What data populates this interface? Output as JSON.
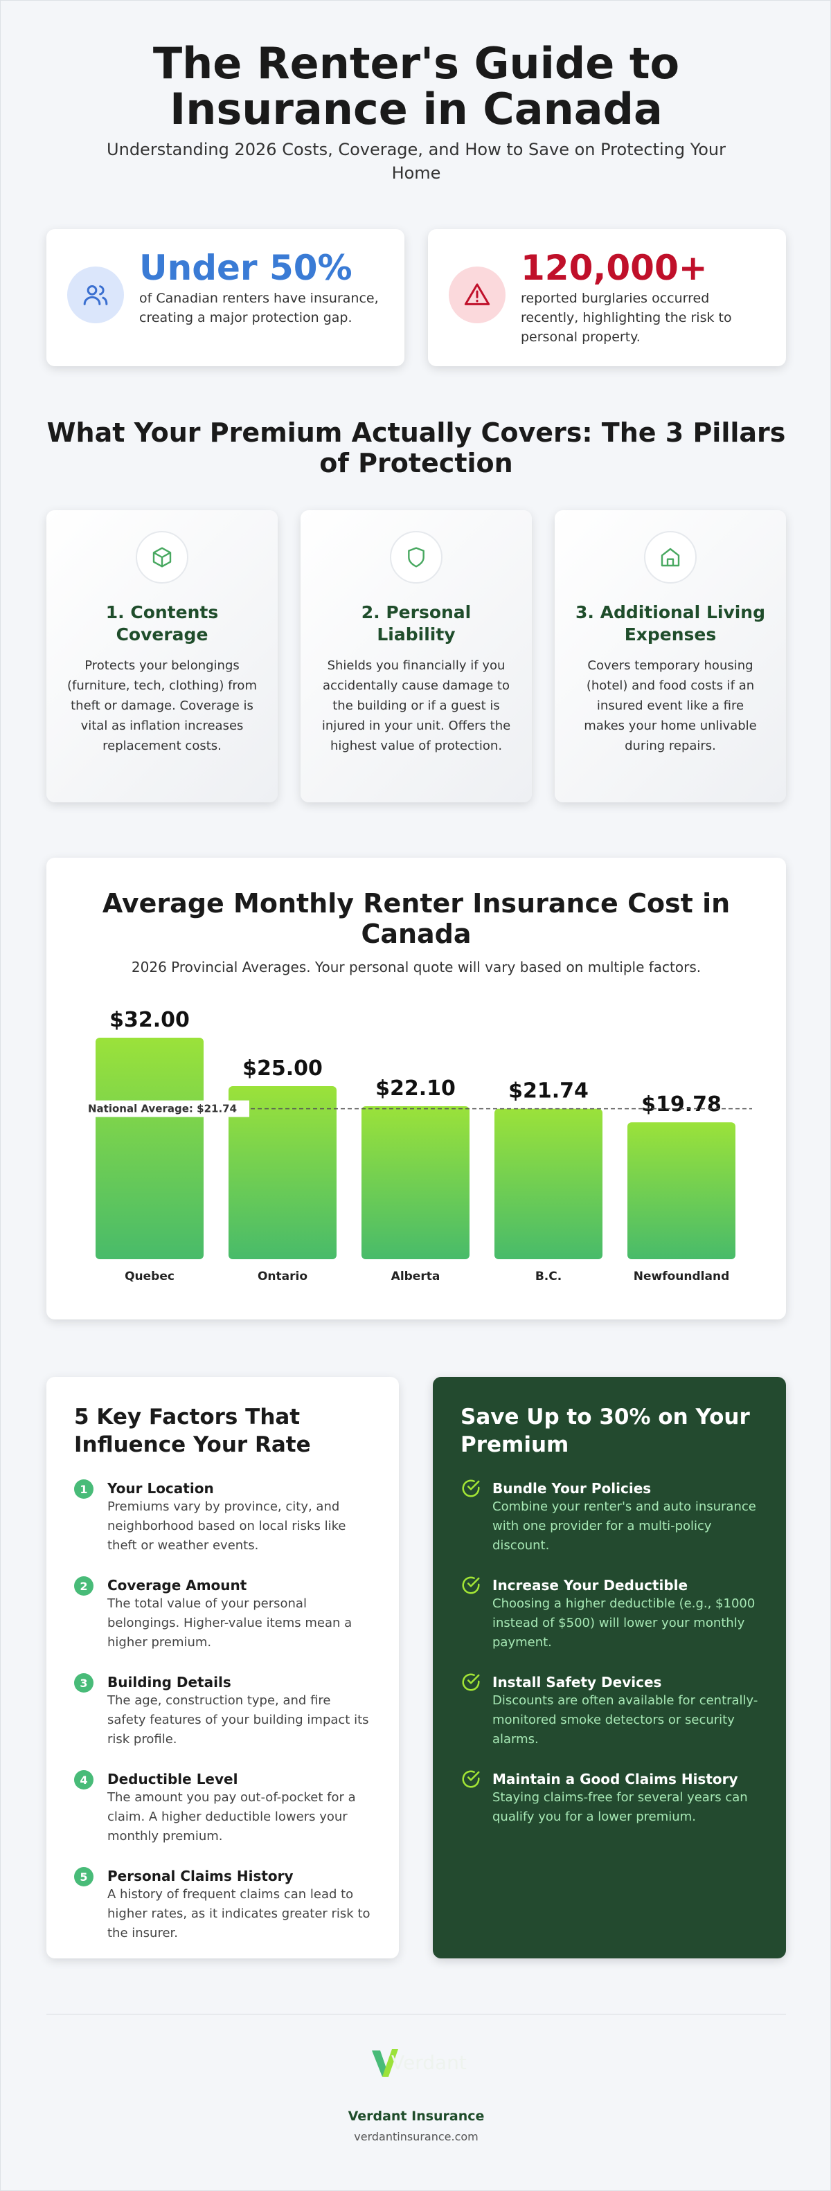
{
  "header": {
    "title": "The Renter's Guide to Insurance in Canada",
    "subtitle": "Understanding 2026 Costs, Coverage, and How to Save on Protecting Your Home"
  },
  "stats": [
    {
      "value": "Under 50%",
      "text": "of Canadian renters have insurance, creating a major protection gap."
    },
    {
      "value": "120,000+",
      "text": "reported burglaries occurred recently, highlighting the risk to personal property."
    }
  ],
  "pillars": {
    "title": "What Your Premium Actually Covers: The 3 Pillars of Protection",
    "items": [
      {
        "title": "1. Contents Coverage",
        "text": "Protects your belongings (furniture, tech, clothing) from theft or damage. Coverage is vital as inflation increases replacement costs."
      },
      {
        "title": "2. Personal Liability",
        "text": "Shields you financially if you accidentally cause damage to the building or if a guest is injured in your unit. Offers the highest value of protection."
      },
      {
        "title": "3. Additional Living Expenses",
        "text": "Covers temporary housing (hotel) and food costs if an insured event like a fire makes your home unlivable during repairs."
      }
    ]
  },
  "chart_data": {
    "type": "bar",
    "title": "Average Monthly Renter Insurance Cost in Canada",
    "subtitle": "2026 Provincial Averages. Your personal quote will vary based on multiple factors.",
    "categories": [
      "Quebec",
      "Ontario",
      "Alberta",
      "B.C.",
      "Newfoundland"
    ],
    "values": [
      32,
      25,
      22.1,
      21.74,
      19.78
    ],
    "value_labels": [
      "$32.00",
      "$25.00",
      "$22.10",
      "$21.74",
      "$19.78"
    ],
    "gradient": [
      "#9be23a",
      "#48bb6a"
    ],
    "reference_line": {
      "value": 21.74,
      "label": "National Average: $21.74"
    }
  },
  "factors": {
    "title": "5 Key Factors That Influence Your Rate",
    "items": [
      {
        "number": 1,
        "title": "Your Location",
        "text": "Premiums vary by province, city, and neighborhood based on local risks like theft or weather events."
      },
      {
        "number": 2,
        "title": "Coverage Amount",
        "text": "The total value of your personal belongings. Higher-value items mean a higher premium."
      },
      {
        "number": 3,
        "title": "Building Details",
        "text": "The age, construction type, and fire safety features of your building impact its risk profile."
      },
      {
        "number": 4,
        "title": "Deductible Level",
        "text": "The amount you pay out-of-pocket for a claim. A higher deductible lowers your monthly premium."
      },
      {
        "number": 5,
        "title": "Personal Claims History",
        "text": "A history of frequent claims can lead to higher rates, as it indicates greater risk to the insurer."
      }
    ]
  },
  "savings": {
    "title": "Save Up to 30% on Your Premium",
    "items": [
      {
        "title": "Bundle Your Policies",
        "text": "Combine your renter's and auto insurance with one provider for a multi-policy discount."
      },
      {
        "title": "Increase Your Deductible",
        "text": "Choosing a higher deductible (e.g., $1000 instead of $500) will lower your monthly payment."
      },
      {
        "title": "Install Safety Devices",
        "text": "Discounts are often available for centrally-monitored smoke detectors or security alarms."
      },
      {
        "title": "Maintain a Good Claims History",
        "text": "Staying claims-free for several years can qualify you for a lower premium."
      }
    ]
  },
  "footer": {
    "logo_text": "Verdant",
    "company": "Verdant Insurance",
    "url": "verdantinsurance.com"
  }
}
